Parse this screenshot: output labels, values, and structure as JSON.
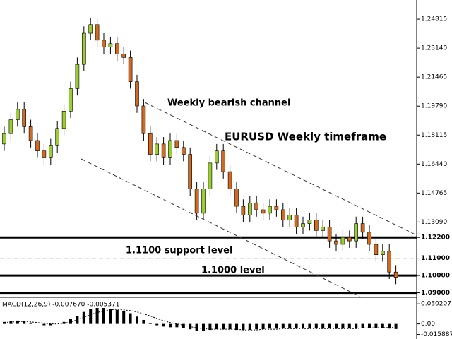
{
  "chart_data": {
    "type": "candlestick",
    "title": "EURUSD Weekly timeframe",
    "annotations": [
      "Weekly bearish channel",
      "1.1100 support level",
      "1.1000 level"
    ],
    "up_color": "#9acd32",
    "down_color": "#d2691e",
    "open": [
      1.176,
      1.182,
      1.19,
      1.196,
      1.186,
      1.178,
      1.172,
      1.168,
      1.175,
      1.185,
      1.195,
      1.208,
      1.222,
      1.24,
      1.245,
      1.236,
      1.232,
      1.234,
      1.228,
      1.226,
      1.212,
      1.198,
      1.182,
      1.17,
      1.176,
      1.168,
      1.178,
      1.174,
      1.17,
      1.15,
      1.136,
      1.15,
      1.165,
      1.172,
      1.16,
      1.15,
      1.14,
      1.135,
      1.142,
      1.138,
      1.136,
      1.14,
      1.138,
      1.132,
      1.135,
      1.128,
      1.13,
      1.132,
      1.126,
      1.128,
      1.12,
      1.118,
      1.122,
      1.12,
      1.13,
      1.125,
      1.118,
      1.112,
      1.114,
      1.102
    ],
    "high": [
      1.186,
      1.194,
      1.2,
      1.2,
      1.19,
      1.182,
      1.176,
      1.179,
      1.189,
      1.199,
      1.212,
      1.226,
      1.244,
      1.249,
      1.249,
      1.24,
      1.238,
      1.238,
      1.232,
      1.23,
      1.216,
      1.202,
      1.186,
      1.18,
      1.18,
      1.182,
      1.182,
      1.178,
      1.174,
      1.154,
      1.154,
      1.169,
      1.176,
      1.176,
      1.164,
      1.154,
      1.144,
      1.146,
      1.146,
      1.142,
      1.144,
      1.144,
      1.142,
      1.139,
      1.139,
      1.134,
      1.136,
      1.136,
      1.132,
      1.132,
      1.124,
      1.126,
      1.126,
      1.134,
      1.134,
      1.129,
      1.122,
      1.118,
      1.118,
      1.106
    ],
    "low": [
      1.172,
      1.178,
      1.186,
      1.182,
      1.174,
      1.168,
      1.164,
      1.164,
      1.171,
      1.181,
      1.191,
      1.204,
      1.218,
      1.236,
      1.232,
      1.228,
      1.228,
      1.224,
      1.222,
      1.208,
      1.194,
      1.178,
      1.166,
      1.166,
      1.164,
      1.164,
      1.17,
      1.166,
      1.146,
      1.132,
      1.132,
      1.146,
      1.161,
      1.156,
      1.146,
      1.136,
      1.131,
      1.131,
      1.134,
      1.132,
      1.132,
      1.134,
      1.128,
      1.128,
      1.124,
      1.124,
      1.126,
      1.122,
      1.122,
      1.116,
      1.114,
      1.114,
      1.116,
      1.116,
      1.121,
      1.114,
      1.108,
      1.108,
      1.098,
      1.095
    ],
    "close": [
      1.182,
      1.19,
      1.196,
      1.186,
      1.178,
      1.172,
      1.168,
      1.175,
      1.185,
      1.195,
      1.208,
      1.222,
      1.24,
      1.245,
      1.236,
      1.232,
      1.234,
      1.228,
      1.226,
      1.212,
      1.198,
      1.182,
      1.17,
      1.176,
      1.168,
      1.178,
      1.174,
      1.17,
      1.15,
      1.136,
      1.15,
      1.165,
      1.172,
      1.16,
      1.15,
      1.14,
      1.135,
      1.142,
      1.138,
      1.136,
      1.14,
      1.138,
      1.132,
      1.135,
      1.128,
      1.13,
      1.132,
      1.126,
      1.128,
      1.12,
      1.118,
      1.122,
      1.12,
      1.13,
      1.125,
      1.118,
      1.112,
      1.114,
      1.102,
      1.099
    ],
    "ylim": [
      1.0878,
      1.2592
    ],
    "yticks": [
      {
        "value": 1.24815,
        "label": "1.24815"
      },
      {
        "value": 1.2314,
        "label": "1.23140"
      },
      {
        "value": 1.21465,
        "label": "1.21465"
      },
      {
        "value": 1.1979,
        "label": "1.19790"
      },
      {
        "value": 1.18115,
        "label": "1.18115"
      },
      {
        "value": 1.1644,
        "label": "1.16440"
      },
      {
        "value": 1.14765,
        "label": "1.14765"
      },
      {
        "value": 1.1309,
        "label": "1.13090"
      },
      {
        "value": 1.122,
        "label": "1.12200"
      },
      {
        "value": 1.11,
        "label": "1.11000"
      },
      {
        "value": 1.1,
        "label": "1.10000"
      },
      {
        "value": 1.09,
        "label": "1.09000"
      }
    ],
    "levels": [
      {
        "value": 1.122,
        "style": "solid"
      },
      {
        "value": 1.11,
        "style": "dashed"
      },
      {
        "value": 1.1,
        "style": "solid"
      },
      {
        "value": 1.09,
        "style": "solid"
      }
    ],
    "macd": {
      "label": "MACD(12,26,9) -0.007670 -0.005371",
      "values": [
        0.003,
        0.004,
        0.005,
        0.004,
        0.002,
        0.0,
        -0.002,
        -0.002,
        0.0,
        0.003,
        0.007,
        0.012,
        0.018,
        0.022,
        0.024,
        0.024,
        0.023,
        0.021,
        0.019,
        0.016,
        0.011,
        0.006,
        0.001,
        -0.002,
        -0.004,
        -0.005,
        -0.005,
        -0.006,
        -0.008,
        -0.01,
        -0.01,
        -0.009,
        -0.008,
        -0.008,
        -0.008,
        -0.009,
        -0.009,
        -0.009,
        -0.008,
        -0.008,
        -0.007,
        -0.007,
        -0.007,
        -0.007,
        -0.007,
        -0.007,
        -0.007,
        -0.007,
        -0.007,
        -0.007,
        -0.007,
        -0.007,
        -0.007,
        -0.006,
        -0.006,
        -0.006,
        -0.006,
        -0.006,
        -0.007,
        -0.00767
      ],
      "signal": [
        0.002,
        0.003,
        0.003,
        0.004,
        0.003,
        0.002,
        0.001,
        0.0,
        0.0,
        0.001,
        0.003,
        0.006,
        0.01,
        0.014,
        0.017,
        0.02,
        0.021,
        0.022,
        0.021,
        0.02,
        0.018,
        0.015,
        0.012,
        0.008,
        0.005,
        0.002,
        0.0,
        -0.002,
        -0.004,
        -0.006,
        -0.007,
        -0.008,
        -0.008,
        -0.008,
        -0.008,
        -0.008,
        -0.009,
        -0.009,
        -0.009,
        -0.008,
        -0.008,
        -0.008,
        -0.007,
        -0.007,
        -0.007,
        -0.007,
        -0.007,
        -0.007,
        -0.007,
        -0.007,
        -0.007,
        -0.007,
        -0.007,
        -0.007,
        -0.006,
        -0.006,
        -0.0058,
        -0.0056,
        -0.0055,
        -0.005371
      ],
      "ylim": [
        -0.0227,
        0.0389
      ],
      "yticks": [
        {
          "value": 0.030207,
          "label": "0.030207"
        },
        {
          "value": 0,
          "label": "0.00"
        },
        {
          "value": -0.015887,
          "label": "-0.015887"
        }
      ]
    }
  }
}
